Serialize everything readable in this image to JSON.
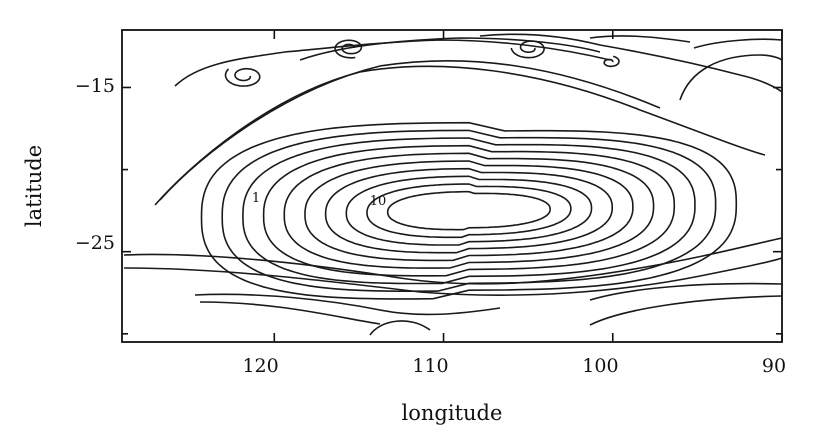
{
  "chart_data": {
    "type": "contour",
    "xlabel": "longitude",
    "ylabel": "latitude",
    "x_range": [
      129,
      90
    ],
    "y_range": [
      -30.5,
      -11.5
    ],
    "x_ticks": [
      120,
      110,
      100,
      90
    ],
    "x_tick_labels": [
      "120",
      "110",
      "100",
      "90"
    ],
    "y_ticks": [
      -15,
      -25
    ],
    "y_tick_labels": [
      "−15",
      "−25"
    ],
    "contour_labels": [
      {
        "text": "1",
        "x": 120.2,
        "y": -22.6
      },
      {
        "text": "10",
        "x": 113.2,
        "y": -22.6
      }
    ],
    "gyre": {
      "center": [
        108.5,
        -22.5
      ],
      "levels": 10,
      "inner_semi_axes": [
        4.8,
        1.1
      ],
      "outer_semi_axes": [
        15.8,
        5.1
      ]
    },
    "colors": {
      "line": "#1a1a1a",
      "background": "#ffffff"
    }
  }
}
